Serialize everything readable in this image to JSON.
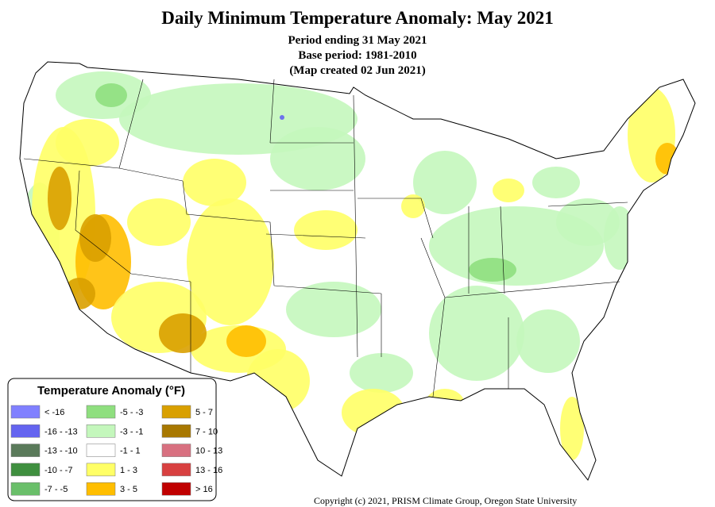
{
  "header": {
    "title": "Daily Minimum Temperature Anomaly: May 2021",
    "subtitles": [
      "Period ending 31 May 2021",
      "Base period: 1981-2010",
      "(Map created 02 Jun 2021)"
    ]
  },
  "legend": {
    "title": "Temperature Anomaly (°F)",
    "items": [
      {
        "label": "< -16",
        "color": "#8080ff"
      },
      {
        "label": "-16 - -13",
        "color": "#6464f0"
      },
      {
        "label": "-13 - -10",
        "color": "#5a7a5a"
      },
      {
        "label": "-10 - -7",
        "color": "#3f8f3f"
      },
      {
        "label": "-7 - -5",
        "color": "#6abf6a"
      },
      {
        "label": "-5 - -3",
        "color": "#8fdf7f"
      },
      {
        "label": "-3 - -1",
        "color": "#c4f7bc"
      },
      {
        "label": "-1 - 1",
        "color": "#ffffff"
      },
      {
        "label": "1 - 3",
        "color": "#ffff66"
      },
      {
        "label": "3 - 5",
        "color": "#ffbe00"
      },
      {
        "label": "5 - 7",
        "color": "#d9a000"
      },
      {
        "label": "7 - 10",
        "color": "#a87800"
      },
      {
        "label": "10 - 13",
        "color": "#d87080"
      },
      {
        "label": "13 - 16",
        "color": "#d84040"
      },
      {
        "label": "> 16",
        "color": "#c00000"
      }
    ]
  },
  "footer": {
    "copyright": "Copyright (c) 2021, PRISM Climate Group, Oregon State University"
  }
}
